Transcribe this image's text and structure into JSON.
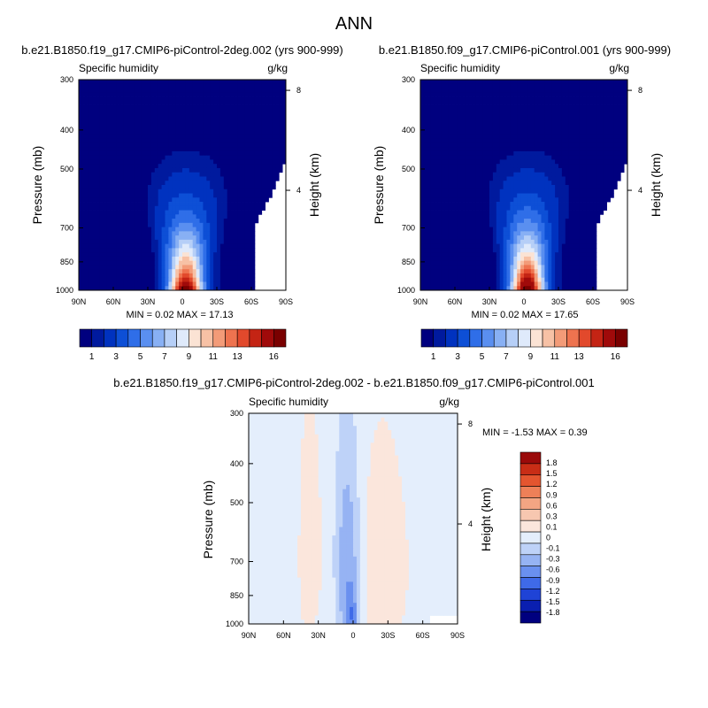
{
  "figure_title": "ANN",
  "colors": {
    "abs_scale": [
      "#00007f",
      "#001a9e",
      "#0032bf",
      "#0d4fd6",
      "#2f6ee8",
      "#5a8ff0",
      "#88b0f4",
      "#b6cff7",
      "#dfeafb",
      "#fbe3d4",
      "#f7c1a5",
      "#f39b78",
      "#ee734f",
      "#e2492c",
      "#c42414",
      "#a00a0a",
      "#7a0000"
    ],
    "diff_scale": [
      "#00007f",
      "#0a1fb0",
      "#1f43d6",
      "#3f6ae8",
      "#6a90ef",
      "#96b3f3",
      "#bed2f8",
      "#e4eefc",
      "#fbe6dc",
      "#f7c7b0",
      "#f3a583",
      "#ee8058",
      "#e4552f",
      "#c82d16",
      "#9a0a0a"
    ]
  },
  "chart_data": [
    {
      "type": "heatmap",
      "title": "b.e21.B1850.f19_g17.CMIP6-piControl-2deg.002 (yrs 900-999)",
      "left_label": "Specific humidity",
      "right_label": "g/kg",
      "ylabel": "Pressure (mb)",
      "ylabel_right": "Height (km)",
      "x_ticks": [
        "90N",
        "60N",
        "30N",
        "0",
        "30S",
        "60S",
        "90S"
      ],
      "x_tick_values": [
        90,
        60,
        30,
        0,
        -30,
        -60,
        -90
      ],
      "y_ticks": [
        "300",
        "400",
        "500",
        "700",
        "850",
        "1000"
      ],
      "y_tick_values": [
        300,
        400,
        500,
        700,
        850,
        1000
      ],
      "y_right_ticks": [
        "8",
        "4"
      ],
      "ylim": [
        1000,
        300
      ],
      "xlim": [
        90,
        -90
      ],
      "min_max_text": "MIN =  0.02  MAX =  17.13",
      "min": 0.02,
      "max": 17.13,
      "colorbar_labels": [
        "1",
        "3",
        "5",
        "7",
        "9",
        "11",
        "13",
        "16"
      ],
      "colorbar_levels": [
        0.5,
        1,
        2,
        3,
        4,
        5,
        6,
        7,
        8,
        9,
        10,
        11,
        12,
        13,
        14,
        16
      ]
    },
    {
      "type": "heatmap",
      "title": "b.e21.B1850.f09_g17.CMIP6-piControl.001 (yrs 900-999)",
      "left_label": "Specific humidity",
      "right_label": "g/kg",
      "ylabel": "Pressure (mb)",
      "ylabel_right": "Height (km)",
      "x_ticks": [
        "90N",
        "60N",
        "30N",
        "0",
        "30S",
        "60S",
        "90S"
      ],
      "x_tick_values": [
        90,
        60,
        30,
        0,
        -30,
        -60,
        -90
      ],
      "y_ticks": [
        "300",
        "400",
        "500",
        "700",
        "850",
        "1000"
      ],
      "y_tick_values": [
        300,
        400,
        500,
        700,
        850,
        1000
      ],
      "y_right_ticks": [
        "8",
        "4"
      ],
      "ylim": [
        1000,
        300
      ],
      "xlim": [
        90,
        -90
      ],
      "min_max_text": "MIN =  0.02  MAX =  17.65",
      "min": 0.02,
      "max": 17.65,
      "colorbar_labels": [
        "1",
        "3",
        "5",
        "7",
        "9",
        "11",
        "13",
        "16"
      ],
      "colorbar_levels": [
        0.5,
        1,
        2,
        3,
        4,
        5,
        6,
        7,
        8,
        9,
        10,
        11,
        12,
        13,
        14,
        16
      ]
    },
    {
      "type": "heatmap",
      "title": "b.e21.B1850.f19_g17.CMIP6-piControl-2deg.002 - b.e21.B1850.f09_g17.CMIP6-piControl.001",
      "left_label": "Specific humidity",
      "right_label": "g/kg",
      "ylabel": "Pressure (mb)",
      "ylabel_right": "Height (km)",
      "x_ticks": [
        "90N",
        "60N",
        "30N",
        "0",
        "30S",
        "60S",
        "90S"
      ],
      "x_tick_values": [
        90,
        60,
        30,
        0,
        -30,
        -60,
        -90
      ],
      "y_ticks": [
        "300",
        "400",
        "500",
        "700",
        "850",
        "1000"
      ],
      "y_tick_values": [
        300,
        400,
        500,
        700,
        850,
        1000
      ],
      "y_right_ticks": [
        "8",
        "4"
      ],
      "ylim": [
        1000,
        300
      ],
      "xlim": [
        90,
        -90
      ],
      "min_max_text": "MIN = -1.53  MAX =  0.39",
      "min": -1.53,
      "max": 0.39,
      "colorbar_labels": [
        "1.8",
        "1.5",
        "1.2",
        "0.9",
        "0.6",
        "0.3",
        "0.1",
        "0",
        "-0.1",
        "-0.3",
        "-0.6",
        "-0.9",
        "-1.2",
        "-1.5",
        "-1.8"
      ],
      "colorbar_levels": [
        -1.8,
        -1.5,
        -1.2,
        -0.9,
        -0.6,
        -0.3,
        -0.1,
        0,
        0.1,
        0.3,
        0.6,
        0.9,
        1.2,
        1.5,
        1.8
      ]
    }
  ]
}
